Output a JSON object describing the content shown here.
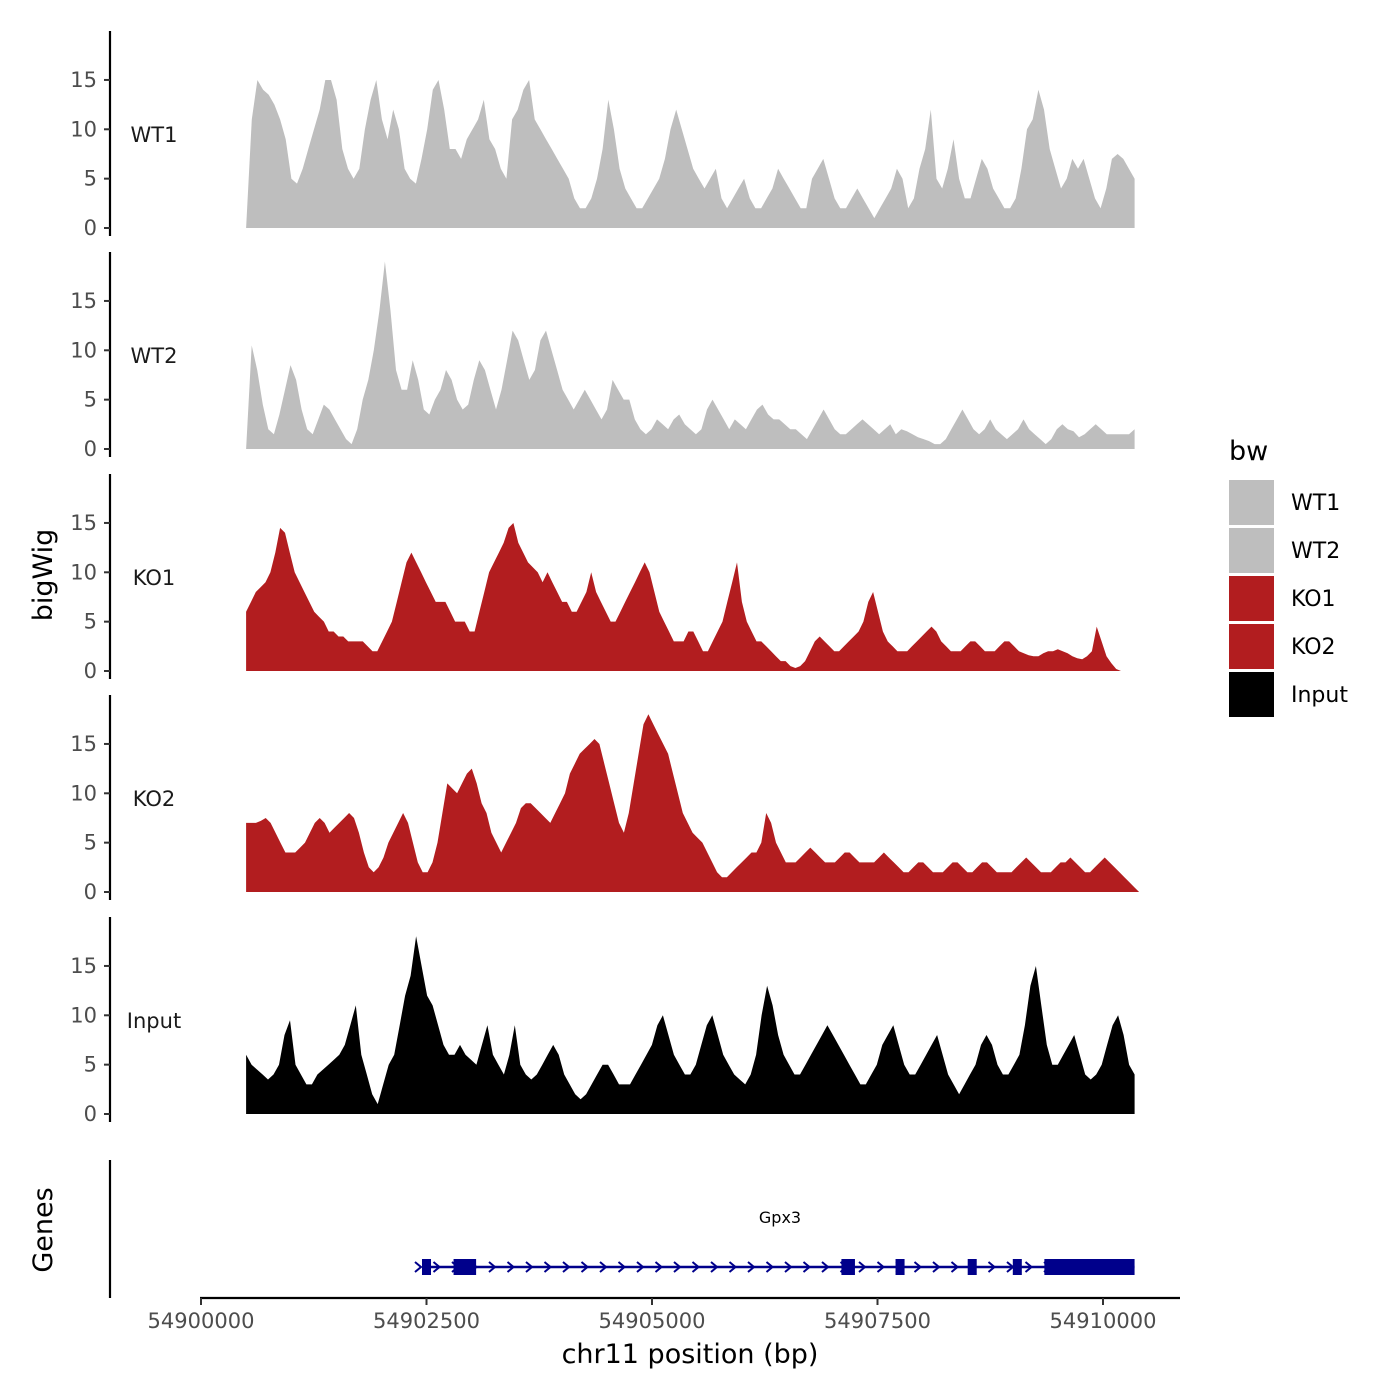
{
  "chart_data": {
    "type": "area",
    "ylabel": "bigWig",
    "xlabel": "chr11 position (bp)",
    "xlim": [
      54900000,
      54910500
    ],
    "ylim": [
      0,
      20
    ],
    "yticks": [
      0,
      5,
      10,
      15
    ],
    "xticks": [
      54900000,
      54902500,
      54905000,
      54907500,
      54910000
    ],
    "xtick_labels": [
      "54900000",
      "54902500",
      "54905000",
      "54907500",
      "54910000"
    ],
    "legend": {
      "title": "bw",
      "position": "right",
      "entries": [
        {
          "label": "WT1",
          "color": "#bebebe"
        },
        {
          "label": "WT2",
          "color": "#bebebe"
        },
        {
          "label": "KO1",
          "color": "#b21d1f"
        },
        {
          "label": "KO2",
          "color": "#b21d1f"
        },
        {
          "label": "Input",
          "color": "#000000"
        }
      ]
    },
    "series": [
      {
        "name": "WT1",
        "label": "WT1",
        "color": "#bebebe",
        "x_start": 54900500,
        "x_end": 54910350,
        "values": [
          0,
          11,
          15,
          14,
          13.5,
          12.5,
          11,
          9,
          5,
          4.5,
          6,
          8,
          10,
          12,
          15,
          15,
          13,
          8,
          6,
          5,
          6,
          10,
          13,
          15,
          11,
          9,
          12,
          10,
          6,
          5,
          4.5,
          7,
          10,
          14,
          15,
          12,
          8,
          8,
          7,
          9,
          10,
          11,
          13,
          9,
          8,
          6,
          5,
          11,
          12,
          14,
          15,
          11,
          10,
          9,
          8,
          7,
          6,
          5,
          3,
          2,
          2,
          3,
          5,
          8,
          13,
          10,
          6,
          4,
          3,
          2,
          2,
          3,
          4,
          5,
          7,
          10,
          12,
          10,
          8,
          6,
          5,
          4,
          5,
          6,
          3,
          2,
          3,
          4,
          5,
          3,
          2,
          2,
          3,
          4,
          6,
          5,
          4,
          3,
          2,
          2,
          5,
          6,
          7,
          5,
          3,
          2,
          2,
          3,
          4,
          3,
          2,
          1,
          2,
          3,
          4,
          6,
          5,
          2,
          3,
          6,
          8,
          12,
          5,
          4,
          6,
          9,
          5,
          3,
          3,
          5,
          7,
          6,
          4,
          3,
          2,
          2,
          3,
          6,
          10,
          11,
          14,
          12,
          8,
          6,
          4,
          5,
          7,
          6,
          7,
          5,
          3,
          2,
          4,
          7,
          7.5,
          7,
          6,
          5
        ]
      },
      {
        "name": "WT2",
        "label": "WT2",
        "color": "#bebebe",
        "x_start": 54900500,
        "x_end": 54910350,
        "values": [
          0,
          10.5,
          8,
          4.5,
          2,
          1.5,
          3.5,
          6,
          8.5,
          7,
          4,
          2,
          1.5,
          3,
          4.5,
          4,
          3,
          2,
          1,
          0.5,
          2,
          5,
          7,
          10,
          14,
          19,
          14,
          8,
          6,
          6,
          9,
          7,
          4,
          3.5,
          5,
          6,
          8,
          7,
          5,
          4,
          4.5,
          7,
          9,
          8,
          6,
          4,
          6,
          9,
          12,
          11,
          9,
          7,
          8,
          11,
          12,
          10,
          8,
          6,
          5,
          4,
          5,
          6,
          5,
          4,
          3,
          4,
          7,
          6,
          5,
          5,
          3,
          2,
          1.5,
          2,
          3,
          2.5,
          2,
          3,
          3.5,
          2.5,
          2,
          1.5,
          2,
          4,
          5,
          4,
          3,
          2,
          3,
          2.5,
          2,
          3,
          4,
          4.5,
          3.5,
          3,
          3,
          2.5,
          2,
          2,
          1.5,
          1,
          2,
          3,
          4,
          3,
          2,
          1.5,
          1.5,
          2,
          2.5,
          3,
          2.5,
          2,
          1.5,
          2,
          2.5,
          1.5,
          2,
          1.8,
          1.5,
          1.2,
          1,
          0.8,
          0.5,
          0.5,
          1,
          2,
          3,
          4,
          3,
          2,
          1.5,
          2,
          3,
          2,
          1.5,
          1,
          1.5,
          2,
          3,
          2,
          1.5,
          1,
          0.5,
          1,
          2,
          2.5,
          2,
          1.8,
          1.2,
          1.5,
          2,
          2.5,
          2,
          1.5,
          1.5,
          1.5,
          1.5,
          1.5,
          2
        ]
      },
      {
        "name": "KO1",
        "label": "KO1",
        "color": "#b21d1f",
        "x_start": 54900500,
        "x_end": 54910200,
        "values": [
          6,
          7,
          8,
          8.5,
          9,
          10,
          12,
          14.5,
          14,
          12,
          10,
          9,
          8,
          7,
          6,
          5.5,
          5,
          4,
          4,
          3.5,
          3.5,
          3,
          3,
          3,
          3,
          2.5,
          2,
          2,
          3,
          4,
          5,
          7,
          9,
          11,
          12,
          11,
          10,
          9,
          8,
          7,
          7,
          7,
          6,
          5,
          5,
          5,
          4,
          4,
          6,
          8,
          10,
          11,
          12,
          13,
          14.5,
          15,
          13,
          12,
          11,
          10.5,
          10,
          9,
          10,
          9,
          8,
          7,
          7,
          6,
          6,
          7,
          8,
          10,
          8,
          7,
          6,
          5,
          5,
          6,
          7,
          8,
          9,
          10,
          11,
          10,
          8,
          6,
          5,
          4,
          3,
          3,
          3,
          4,
          4,
          3,
          2,
          2,
          3,
          4,
          5,
          7,
          9,
          11,
          7,
          5,
          4,
          3,
          3,
          2.5,
          2,
          1.5,
          1,
          1,
          0.5,
          0.3,
          0.5,
          1,
          2,
          3,
          3.5,
          3,
          2.5,
          2,
          2,
          2.5,
          3,
          3.5,
          4,
          5,
          7,
          8,
          6,
          4,
          3,
          2.5,
          2,
          2,
          2,
          2.5,
          3,
          3.5,
          4,
          4.5,
          4,
          3,
          2.5,
          2,
          2,
          2,
          2.5,
          3,
          3,
          2.5,
          2,
          2,
          2,
          2.5,
          3,
          3,
          2.5,
          2,
          1.8,
          1.6,
          1.5,
          1.5,
          1.8,
          2,
          2,
          2.2,
          2,
          1.8,
          1.5,
          1.3,
          1.2,
          1.5,
          2,
          4.5,
          3,
          1.5,
          0.8,
          0.2,
          0
        ]
      },
      {
        "name": "KO2",
        "label": "KO2",
        "color": "#b21d1f",
        "x_start": 54900500,
        "x_end": 54910400,
        "values": [
          7,
          7,
          7,
          7.2,
          7.5,
          7,
          6,
          5,
          4,
          4,
          4,
          4.5,
          5,
          6,
          7,
          7.5,
          7,
          6,
          6.5,
          7,
          7.5,
          8,
          7.5,
          6,
          4,
          2.5,
          2,
          2.5,
          3.5,
          5,
          6,
          7,
          8,
          7,
          5,
          3,
          2,
          2,
          3,
          5,
          8,
          11,
          10.5,
          10,
          11,
          12,
          12.5,
          11,
          9,
          8,
          6,
          5,
          4,
          5,
          6,
          7,
          8.5,
          9,
          9,
          8.5,
          8,
          7.5,
          7,
          8,
          9,
          10,
          12,
          13,
          14,
          14.5,
          15,
          15.5,
          15,
          13,
          11,
          9,
          7,
          6,
          8,
          11,
          14,
          17,
          18,
          17,
          16,
          15,
          14,
          12,
          10,
          8,
          7,
          6,
          5.5,
          5,
          4,
          3,
          2,
          1.5,
          1.5,
          2,
          2.5,
          3,
          3.5,
          4,
          4,
          5,
          8,
          7,
          5,
          4,
          3,
          3,
          3,
          3.5,
          4,
          4.5,
          4,
          3.5,
          3,
          3,
          3,
          3.5,
          4,
          4,
          3.5,
          3,
          3,
          3,
          3,
          3.5,
          4,
          3.5,
          3,
          2.5,
          2,
          2,
          2.5,
          3,
          3,
          2.5,
          2,
          2,
          2,
          2.5,
          3,
          3,
          2.5,
          2,
          2,
          2.5,
          3,
          3,
          2.5,
          2,
          2,
          2,
          2,
          2.5,
          3,
          3.5,
          3,
          2.5,
          2,
          2,
          2,
          2.5,
          3,
          3,
          3.5,
          3,
          2.5,
          2,
          2,
          2.5,
          3,
          3.5,
          3,
          2.5,
          2,
          1.5,
          1,
          0.5,
          0
        ]
      },
      {
        "name": "Input",
        "label": "Input",
        "color": "#000000",
        "x_start": 54900500,
        "x_end": 54910350,
        "values": [
          6,
          5,
          4.5,
          4,
          3.5,
          4,
          5,
          8,
          9.5,
          5,
          4,
          3,
          3,
          4,
          4.5,
          5,
          5.5,
          6,
          7,
          9,
          11,
          6,
          4,
          2,
          1,
          3,
          5,
          6,
          9,
          12,
          14,
          18,
          15,
          12,
          11,
          9,
          7,
          6,
          6,
          7,
          6,
          5.5,
          5,
          7,
          9,
          6,
          5,
          4,
          6,
          9,
          5,
          4,
          3.5,
          4,
          5,
          6,
          7,
          6,
          4,
          3,
          2,
          1.5,
          2,
          3,
          4,
          5,
          5,
          4,
          3,
          3,
          3,
          4,
          5,
          6,
          7,
          9,
          10,
          8,
          6,
          5,
          4,
          4,
          5,
          7,
          9,
          10,
          8,
          6,
          5,
          4,
          3.5,
          3,
          4,
          6,
          10,
          13,
          11,
          8,
          6,
          5,
          4,
          4,
          5,
          6,
          7,
          8,
          9,
          8,
          7,
          6,
          5,
          4,
          3,
          3,
          4,
          5,
          7,
          8,
          9,
          7,
          5,
          4,
          4,
          5,
          6,
          7,
          8,
          6,
          4,
          3,
          2,
          3,
          4,
          5,
          7,
          8,
          7,
          5,
          4,
          4,
          5,
          6,
          9,
          13,
          15,
          11,
          7,
          5,
          5,
          6,
          7,
          8,
          6,
          4,
          3.5,
          4,
          5,
          7,
          9,
          10,
          8,
          5,
          4
        ]
      }
    ],
    "gene_track": {
      "label": "Genes",
      "gene_name": "Gpx3",
      "strand": "+",
      "color": "#00008b",
      "gene_start": 54902450,
      "gene_end": 54910350,
      "exons": [
        [
          54902450,
          54902550
        ],
        [
          54902800,
          54903050
        ],
        [
          54907100,
          54907250
        ],
        [
          54907700,
          54907800
        ],
        [
          54908500,
          54908600
        ],
        [
          54909000,
          54909100
        ],
        [
          54909350,
          54910350
        ]
      ]
    }
  }
}
